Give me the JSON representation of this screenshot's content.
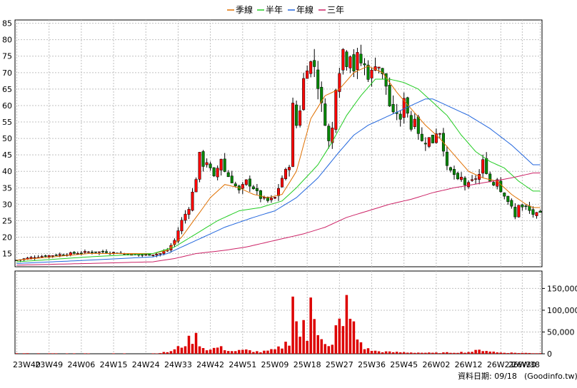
{
  "chart_data": {
    "type": "candlestick",
    "legend": [
      {
        "label": "季線",
        "color": "#e07000"
      },
      {
        "label": "半年",
        "color": "#22cc22"
      },
      {
        "label": "年線",
        "color": "#2266dd"
      },
      {
        "label": "三年",
        "color": "#cc2266"
      }
    ],
    "legend_position": "top-center",
    "price_axis": {
      "ticks": [
        15,
        20,
        25,
        30,
        35,
        40,
        45,
        50,
        55,
        60,
        65,
        70,
        75,
        80,
        85
      ],
      "ylim": [
        11,
        86
      ],
      "side": "left"
    },
    "volume_axis": {
      "ticks": [
        0,
        50000,
        100000,
        150000
      ],
      "tick_labels": [
        "0",
        "50,000",
        "100,000",
        "150,000"
      ],
      "ylim": [
        0,
        190000
      ],
      "side": "right"
    },
    "x_ticks": [
      "23W40",
      "23W49",
      "24W06",
      "24W15",
      "24W24",
      "24W33",
      "24W42",
      "24W51",
      "25W09",
      "25W18",
      "25W27",
      "25W36",
      "25W45",
      "26W02",
      "26W12",
      "26W21",
      "26W30",
      "26W38"
    ],
    "grid": true,
    "footer": {
      "label": "資料日期: 09/18",
      "source": "(Goodinfo.tw)"
    },
    "colors": {
      "up": "#ff0000",
      "down": "#008800",
      "volume": "#dd0000"
    },
    "anchors": {
      "close": [
        [
          0,
          13
        ],
        [
          5,
          14
        ],
        [
          10,
          14.5
        ],
        [
          15,
          15
        ],
        [
          20,
          15.5
        ],
        [
          25,
          15.5
        ],
        [
          30,
          15
        ],
        [
          35,
          14.5
        ],
        [
          40,
          15
        ],
        [
          42,
          16
        ],
        [
          44,
          19
        ],
        [
          46,
          25
        ],
        [
          48,
          29
        ],
        [
          50,
          38
        ],
        [
          51,
          45
        ],
        [
          52,
          42
        ],
        [
          53,
          43
        ],
        [
          55,
          38
        ],
        [
          57,
          44
        ],
        [
          58,
          40
        ],
        [
          60,
          37
        ],
        [
          62,
          34
        ],
        [
          64,
          37
        ],
        [
          66,
          35
        ],
        [
          68,
          32
        ],
        [
          70,
          31
        ],
        [
          72,
          32
        ],
        [
          74,
          38
        ],
        [
          76,
          42
        ],
        [
          77,
          60
        ],
        [
          78,
          54
        ],
        [
          79,
          59
        ],
        [
          80,
          68
        ],
        [
          81,
          72
        ],
        [
          82,
          73
        ],
        [
          83,
          72
        ],
        [
          84,
          66
        ],
        [
          85,
          60
        ],
        [
          86,
          55
        ],
        [
          87,
          49
        ],
        [
          88,
          53
        ],
        [
          89,
          66
        ],
        [
          90,
          71
        ],
        [
          91,
          77
        ],
        [
          92,
          73
        ],
        [
          93,
          76
        ],
        [
          94,
          71
        ],
        [
          95,
          75
        ],
        [
          96,
          73
        ],
        [
          97,
          72
        ],
        [
          98,
          69
        ],
        [
          99,
          70
        ],
        [
          100,
          73
        ],
        [
          101,
          72
        ],
        [
          102,
          69
        ],
        [
          103,
          66
        ],
        [
          104,
          60
        ],
        [
          105,
          57
        ],
        [
          106,
          58
        ],
        [
          107,
          55
        ],
        [
          108,
          63
        ],
        [
          109,
          58
        ],
        [
          110,
          53
        ],
        [
          111,
          57
        ],
        [
          112,
          52
        ],
        [
          113,
          49
        ],
        [
          114,
          49
        ],
        [
          115,
          50
        ],
        [
          116,
          49
        ],
        [
          117,
          52
        ],
        [
          118,
          52
        ],
        [
          119,
          47
        ],
        [
          120,
          41
        ],
        [
          121,
          40
        ],
        [
          122,
          39
        ],
        [
          123,
          37
        ],
        [
          124,
          38
        ],
        [
          125,
          36
        ],
        [
          126,
          36
        ],
        [
          127,
          37
        ],
        [
          128,
          38
        ],
        [
          129,
          39
        ],
        [
          130,
          43
        ],
        [
          131,
          40
        ],
        [
          132,
          37
        ],
        [
          133,
          36
        ],
        [
          134,
          38
        ],
        [
          135,
          34
        ],
        [
          136,
          33
        ],
        [
          137,
          31
        ],
        [
          138,
          29
        ],
        [
          139,
          26
        ],
        [
          140,
          30
        ],
        [
          141,
          29
        ],
        [
          142,
          29
        ],
        [
          143,
          28
        ],
        [
          144,
          27
        ]
      ],
      "ma_quarter": [
        [
          0,
          13
        ],
        [
          10,
          14
        ],
        [
          20,
          15
        ],
        [
          30,
          15
        ],
        [
          38,
          15
        ],
        [
          42,
          16
        ],
        [
          46,
          20
        ],
        [
          50,
          26
        ],
        [
          54,
          32
        ],
        [
          58,
          36
        ],
        [
          62,
          35
        ],
        [
          66,
          33
        ],
        [
          70,
          32
        ],
        [
          74,
          33
        ],
        [
          78,
          40
        ],
        [
          82,
          56
        ],
        [
          86,
          63
        ],
        [
          90,
          65
        ],
        [
          94,
          70
        ],
        [
          98,
          72
        ],
        [
          102,
          70
        ],
        [
          106,
          64
        ],
        [
          110,
          59
        ],
        [
          114,
          54
        ],
        [
          118,
          50
        ],
        [
          122,
          45
        ],
        [
          126,
          40
        ],
        [
          130,
          38
        ],
        [
          134,
          37
        ],
        [
          138,
          33
        ],
        [
          142,
          30
        ],
        [
          144,
          29
        ]
      ],
      "ma_half": [
        [
          0,
          12.5
        ],
        [
          20,
          14
        ],
        [
          38,
          15
        ],
        [
          44,
          17
        ],
        [
          50,
          21
        ],
        [
          56,
          25
        ],
        [
          62,
          28
        ],
        [
          68,
          29
        ],
        [
          74,
          31
        ],
        [
          78,
          35
        ],
        [
          84,
          42
        ],
        [
          88,
          49
        ],
        [
          92,
          57
        ],
        [
          96,
          63
        ],
        [
          100,
          68
        ],
        [
          104,
          68
        ],
        [
          108,
          67
        ],
        [
          112,
          65
        ],
        [
          116,
          61
        ],
        [
          120,
          57
        ],
        [
          124,
          51
        ],
        [
          128,
          46
        ],
        [
          132,
          43
        ],
        [
          136,
          41
        ],
        [
          140,
          37
        ],
        [
          144,
          34
        ]
      ],
      "ma_year": [
        [
          0,
          12
        ],
        [
          20,
          13
        ],
        [
          38,
          14
        ],
        [
          42,
          15
        ],
        [
          46,
          17
        ],
        [
          52,
          20
        ],
        [
          58,
          23
        ],
        [
          66,
          26
        ],
        [
          72,
          28
        ],
        [
          78,
          32
        ],
        [
          84,
          38
        ],
        [
          90,
          46
        ],
        [
          94,
          51
        ],
        [
          98,
          54
        ],
        [
          102,
          56
        ],
        [
          106,
          58
        ],
        [
          110,
          60
        ],
        [
          114,
          62
        ],
        [
          116,
          62
        ],
        [
          120,
          60
        ],
        [
          126,
          57
        ],
        [
          132,
          53
        ],
        [
          138,
          48
        ],
        [
          144,
          42
        ]
      ],
      "ma_three": [
        [
          0,
          11.5
        ],
        [
          20,
          12
        ],
        [
          38,
          12.5
        ],
        [
          44,
          13.5
        ],
        [
          50,
          15
        ],
        [
          58,
          16
        ],
        [
          64,
          17
        ],
        [
          72,
          19
        ],
        [
          80,
          21
        ],
        [
          86,
          23
        ],
        [
          92,
          26
        ],
        [
          98,
          28
        ],
        [
          104,
          30
        ],
        [
          110,
          31.5
        ],
        [
          116,
          33.5
        ],
        [
          122,
          35
        ],
        [
          130,
          36.5
        ],
        [
          138,
          38
        ],
        [
          144,
          39.5
        ]
      ],
      "volume": [
        [
          0,
          1000
        ],
        [
          10,
          800
        ],
        [
          30,
          700
        ],
        [
          38,
          900
        ],
        [
          40,
          2000
        ],
        [
          42,
          4000
        ],
        [
          44,
          9000
        ],
        [
          46,
          18000
        ],
        [
          48,
          30000
        ],
        [
          50,
          38000
        ],
        [
          52,
          14000
        ],
        [
          54,
          9000
        ],
        [
          56,
          15000
        ],
        [
          58,
          11000
        ],
        [
          60,
          6000
        ],
        [
          64,
          8000
        ],
        [
          68,
          4000
        ],
        [
          72,
          9000
        ],
        [
          74,
          16000
        ],
        [
          76,
          30000
        ],
        [
          77,
          150000
        ],
        [
          78,
          70000
        ],
        [
          79,
          45000
        ],
        [
          80,
          60000
        ],
        [
          81,
          28000
        ],
        [
          82,
          155000
        ],
        [
          83,
          110000
        ],
        [
          84,
          60000
        ],
        [
          85,
          40000
        ],
        [
          86,
          20000
        ],
        [
          87,
          15000
        ],
        [
          88,
          17000
        ],
        [
          89,
          55000
        ],
        [
          90,
          70000
        ],
        [
          91,
          90000
        ],
        [
          92,
          105000
        ],
        [
          93,
          80000
        ],
        [
          94,
          60000
        ],
        [
          95,
          35000
        ],
        [
          96,
          25000
        ],
        [
          97,
          14000
        ],
        [
          98,
          10000
        ],
        [
          100,
          6000
        ],
        [
          104,
          4000
        ],
        [
          110,
          3000
        ],
        [
          116,
          2000
        ],
        [
          122,
          3000
        ],
        [
          126,
          4000
        ],
        [
          130,
          9000
        ],
        [
          134,
          3000
        ],
        [
          140,
          2000
        ],
        [
          144,
          1500
        ]
      ]
    },
    "x_tick_bars": [
      0,
      9,
      18,
      27,
      36,
      45,
      54,
      63,
      72,
      81,
      90,
      99,
      108,
      117,
      126,
      135,
      141,
      146
    ],
    "n_bars": 147
  }
}
